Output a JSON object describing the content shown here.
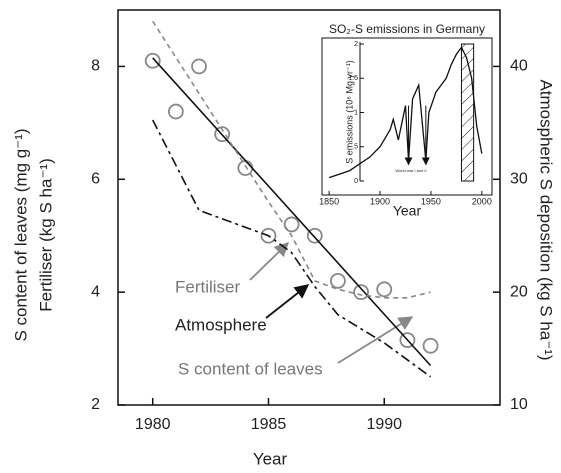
{
  "chart_data": {
    "type": "line",
    "xlabel": "Year",
    "ylabel": [
      "S content of leaves (mg g⁻¹)",
      "Fertiliser (kg S ha⁻¹)"
    ],
    "y2label": "Atmospheric S deposition (kg S ha⁻¹)",
    "xlim": [
      1978.5,
      1995
    ],
    "xticks": [
      1980,
      1985,
      1990
    ],
    "ylim": [
      2,
      9
    ],
    "yticks": [
      2,
      4,
      6,
      8
    ],
    "y2lim": [
      10,
      45
    ],
    "y2ticks": [
      10,
      20,
      30,
      40
    ],
    "series": [
      {
        "name": "S content of leaves",
        "color": "#888888",
        "marker": "circle",
        "x": [
          1980,
          1981,
          1982,
          1983,
          1984,
          1985,
          1986,
          1987,
          1988,
          1989,
          1990,
          1991,
          1992
        ],
        "values": [
          8.1,
          7.2,
          8.0,
          6.8,
          6.2,
          5.0,
          5.2,
          5.0,
          4.2,
          4.0,
          4.05,
          3.15,
          3.05
        ]
      },
      {
        "color": "#111111",
        "dash": "solid",
        "x": [
          1980,
          1992
        ],
        "values": [
          8.15,
          2.7
        ]
      },
      {
        "name": "Fertiliser",
        "color": "#888888",
        "dash": "5,4",
        "x": [
          1980,
          1985,
          1986,
          1987,
          1988,
          1989,
          1990,
          1991,
          1992
        ],
        "values": [
          8.8,
          5.6,
          5.0,
          4.2,
          4.05,
          3.95,
          3.9,
          3.9,
          4.0
        ]
      },
      {
        "name": "Atmosphere",
        "color": "#111111",
        "dash": "10,4,3,4",
        "axis": "y2",
        "x": [
          1980,
          1982,
          1985,
          1986,
          1987,
          1988,
          1990,
          1992
        ],
        "values": [
          35.25,
          27.25,
          25,
          23.5,
          20.5,
          18,
          15.5,
          12.5
        ]
      }
    ],
    "inset": {
      "title": "SO₂-S emissions in Germany",
      "xlabel": "Year",
      "ylabel": "S emissions (10⁶ Mg yr⁻¹)",
      "annotation": "World war I and II",
      "xlim": [
        1843,
        2010
      ],
      "xticks": [
        1850,
        1900,
        1950,
        2000
      ],
      "ylim": [
        0,
        2
      ],
      "yticks": [
        0,
        {
          "value": 0.5,
          "label": ".5"
        },
        1,
        1.5,
        2
      ],
      "color": "#111111",
      "x": [
        1850,
        1870,
        1890,
        1900,
        1910,
        1913,
        1918,
        1925,
        1928,
        1932,
        1938,
        1945,
        1948,
        1955,
        1960,
        1965,
        1970,
        1975,
        1980,
        1985,
        1990,
        1995,
        2000
      ],
      "values": [
        0.05,
        0.15,
        0.35,
        0.5,
        0.75,
        0.9,
        0.6,
        1.1,
        0.3,
        1.2,
        1.4,
        0.3,
        1.0,
        1.3,
        1.4,
        1.5,
        1.7,
        1.85,
        1.95,
        1.8,
        1.5,
        0.8,
        0.4
      ]
    }
  }
}
